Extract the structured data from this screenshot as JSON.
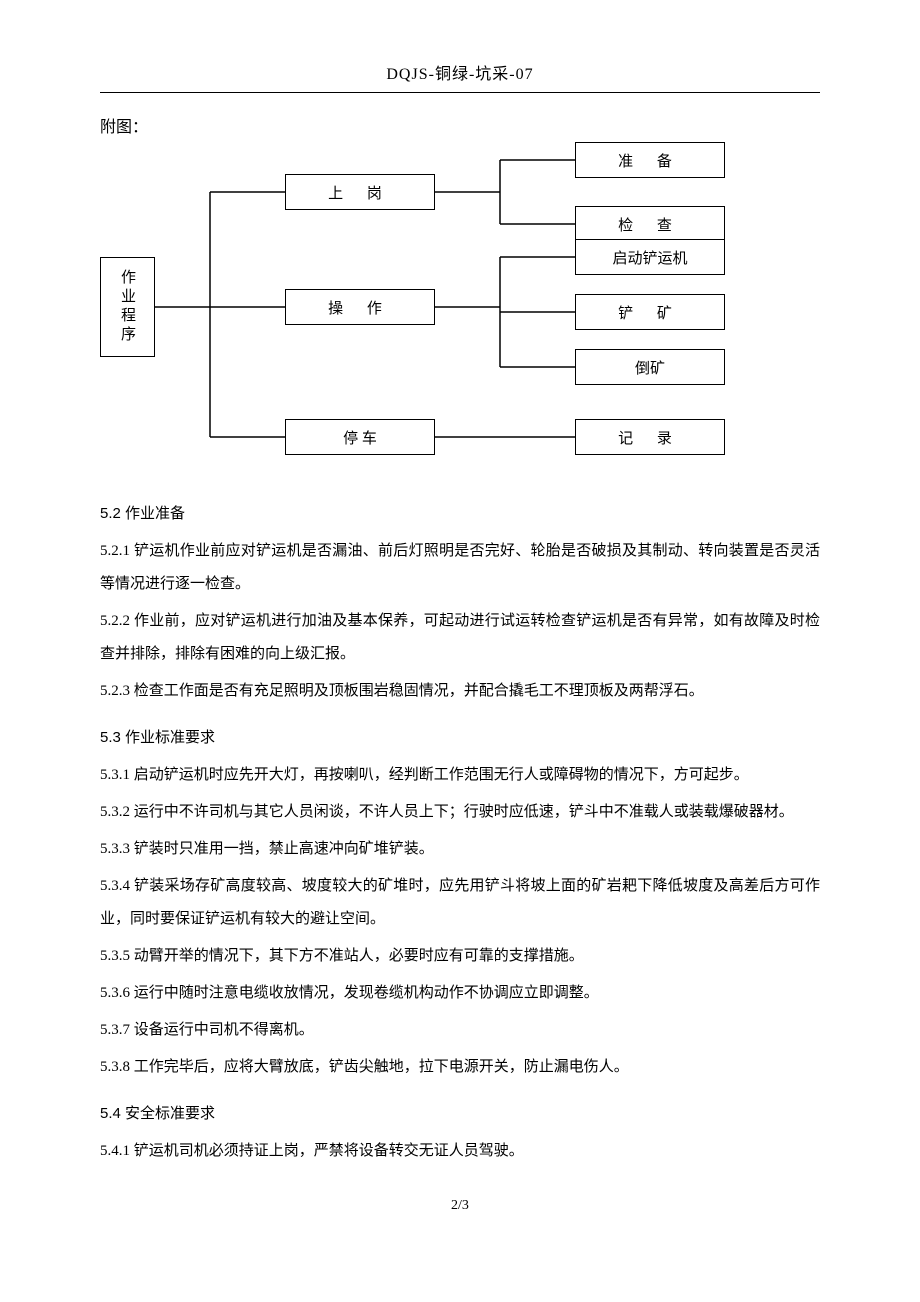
{
  "header": "DQJS-铜绿-坑采-07",
  "diagram": {
    "label": "附图：",
    "nodes": {
      "root": "作业程序",
      "n1": "上 岗",
      "n2": "操 作",
      "n3": "停    车",
      "n11": "准 备",
      "n12": "检 查",
      "n21": "启动铲运机",
      "n22": "铲 矿",
      "n23": "倒矿",
      "n31": "记 录"
    },
    "colors": {
      "stroke": "#000000",
      "bg": "#ffffff"
    }
  },
  "sections": [
    {
      "title": "5.2 作业准备",
      "paras": [
        "5.2.1 铲运机作业前应对铲运机是否漏油、前后灯照明是否完好、轮胎是否破损及其制动、转向装置是否灵活等情况进行逐一检查。",
        "5.2.2 作业前，应对铲运机进行加油及基本保养，可起动进行试运转检查铲运机是否有异常，如有故障及时检查并排除，排除有困难的向上级汇报。",
        "5.2.3 检查工作面是否有充足照明及顶板围岩稳固情况，并配合撬毛工不理顶板及两帮浮石。"
      ]
    },
    {
      "title": "5.3 作业标准要求",
      "paras": [
        "5.3.1 启动铲运机时应先开大灯，再按喇叭，经判断工作范围无行人或障碍物的情况下，方可起步。",
        "5.3.2 运行中不许司机与其它人员闲谈，不许人员上下；行驶时应低速，铲斗中不准载人或装载爆破器材。",
        "5.3.3 铲装时只准用一挡，禁止高速冲向矿堆铲装。",
        "5.3.4 铲装采场存矿高度较高、坡度较大的矿堆时，应先用铲斗将坡上面的矿岩耙下降低坡度及高差后方可作业，同时要保证铲运机有较大的避让空间。",
        "5.3.5 动臂开举的情况下，其下方不准站人，必要时应有可靠的支撑措施。",
        "5.3.6 运行中随时注意电缆收放情况，发现卷缆机构动作不协调应立即调整。",
        "5.3.7 设备运行中司机不得离机。",
        "5.3.8 工作完毕后，应将大臂放底，铲齿尖触地，拉下电源开关，防止漏电伤人。"
      ]
    },
    {
      "title": "5.4 安全标准要求",
      "paras": [
        "5.4.1 铲运机司机必须持证上岗，严禁将设备转交无证人员驾驶。"
      ]
    }
  ],
  "footer": "2/3"
}
